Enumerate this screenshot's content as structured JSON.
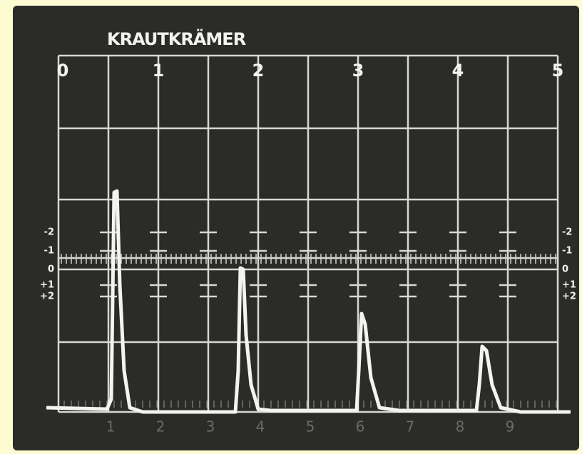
{
  "brand": "KRAUTKRÄMER",
  "top_scale": [
    "0",
    "1",
    "2",
    "3",
    "4",
    "5"
  ],
  "side_scale": [
    "-2",
    "-1",
    "0",
    "+1",
    "+2"
  ],
  "bottom_scale": [
    "1",
    "2",
    "3",
    "4",
    "5",
    "6",
    "7",
    "8",
    "9"
  ]
}
